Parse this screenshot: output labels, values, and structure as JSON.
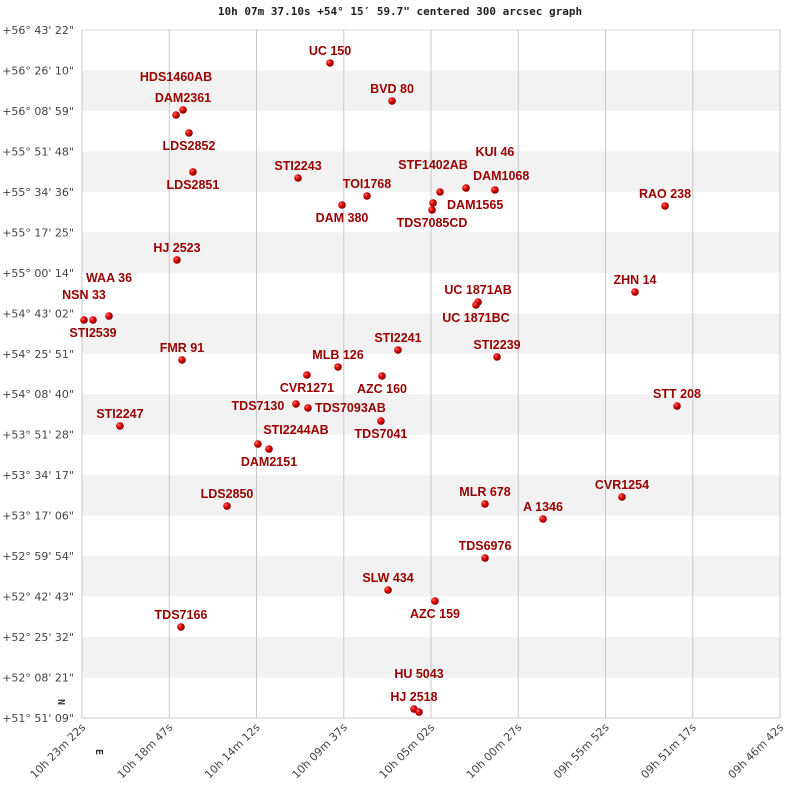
{
  "chart_data": {
    "type": "scatter",
    "title": "10h 07m 37.10s +54° 15′ 59.7\" centered 300 arcsec graph",
    "xlabel": "",
    "ylabel": "",
    "x_units": "right ascension (hours)",
    "y_units": "declination (degrees)",
    "xlim": [
      10.38944,
      9.77833
    ],
    "ylim": [
      51.8525,
      56.72278
    ],
    "x_reversed": true,
    "grid": true,
    "alternating_row_bands": true,
    "compass": {
      "north": "N",
      "east": "E"
    },
    "x_tick_labels": [
      "10h 23m 22s",
      "10h 18m 47s",
      "10h 14m 12s",
      "10h 09m 37s",
      "10h 05m 02s",
      "10h 00m 27s",
      "09h 55m 52s",
      "09h 51m 17s",
      "09h 46m 42s"
    ],
    "y_tick_labels": [
      "+56° 43' 22\"",
      "+56° 26' 10\"",
      "+56° 08' 59\"",
      "+55° 51' 48\"",
      "+55° 34' 36\"",
      "+55° 17' 25\"",
      "+55° 00' 14\"",
      "+54° 43' 02\"",
      "+54° 25' 51\"",
      "+54° 08' 40\"",
      "+53° 51' 28\"",
      "+53° 34' 17\"",
      "+53° 17' 06\"",
      "+52° 59' 54\"",
      "+52° 42' 43\"",
      "+52° 25' 32\"",
      "+52° 08' 21\"",
      "+51° 51' 09\""
    ],
    "colors": {
      "point": "#cc0000",
      "label": "#990000",
      "band": "#f2f2f2",
      "grid": "#c8c8c8"
    },
    "points": [
      {
        "name": "UC  150",
        "ra": 10.1723,
        "dec": 56.4892
      },
      {
        "name": "BVD  80",
        "ra": 10.118,
        "dec": 56.2202
      },
      {
        "name": "DAM2361",
        "ra": 10.301,
        "dec": 56.1565
      },
      {
        "name": "HDS1460AB",
        "ra": 10.3071,
        "dec": 56.1211
      },
      {
        "name": "LDS2852",
        "ra": 10.2958,
        "dec": 55.9937
      },
      {
        "name": "LDS2851",
        "ra": 10.2923,
        "dec": 55.7176
      },
      {
        "name": "STI2243",
        "ra": 10.2003,
        "dec": 55.6751
      },
      {
        "name": "DAM 380",
        "ra": 10.1618,
        "dec": 55.484
      },
      {
        "name": "TOI1768",
        "ra": 10.1399,
        "dec": 55.5477
      },
      {
        "name": "STF1402AB",
        "ra": 10.0821,
        "dec": 55.4982
      },
      {
        "name": "TDS7085CD",
        "ra": 10.083,
        "dec": 55.4486
      },
      {
        "name": "DAM1565",
        "ra": 10.076,
        "dec": 55.576
      },
      {
        "name": "DAM1068",
        "ra": 10.0532,
        "dec": 55.6043
      },
      {
        "name": "KUI  46",
        "ra": 10.0279,
        "dec": 55.5902
      },
      {
        "name": "RAO 238",
        "ra": 9.879,
        "dec": 55.4769
      },
      {
        "name": "HJ 2523",
        "ra": 10.3063,
        "dec": 55.0947
      },
      {
        "name": "ZHN  14",
        "ra": 9.9053,
        "dec": 54.8681
      },
      {
        "name": "UC 1871AB",
        "ra": 10.0427,
        "dec": 54.7973
      },
      {
        "name": "UC 1871BC",
        "ra": 10.0445,
        "dec": 54.7761
      },
      {
        "name": "NSN  33",
        "ra": 10.3877,
        "dec": 54.6699
      },
      {
        "name": "STI2539",
        "ra": 10.3798,
        "dec": 54.6699
      },
      {
        "name": "WAA  36",
        "ra": 10.3658,
        "dec": 54.6982
      },
      {
        "name": "FMR  91",
        "ra": 10.3019,
        "dec": 54.3868
      },
      {
        "name": "STI2241",
        "ra": 10.1128,
        "dec": 54.4576
      },
      {
        "name": "STI2239",
        "ra": 10.0261,
        "dec": 54.408
      },
      {
        "name": "MLB 126",
        "ra": 10.1653,
        "dec": 54.3372
      },
      {
        "name": "CVR1271",
        "ra": 10.1925,
        "dec": 54.2806
      },
      {
        "name": "AZC 160",
        "ra": 10.1268,
        "dec": 54.2735
      },
      {
        "name": "STI2244AB",
        "ra": 10.2021,
        "dec": 54.0753
      },
      {
        "name": "TDS7093AB",
        "ra": 10.1916,
        "dec": 54.047
      },
      {
        "name": "TDS7041",
        "ra": 10.1277,
        "dec": 53.9549
      },
      {
        "name": "STT 208",
        "ra": 9.8685,
        "dec": 54.0611
      },
      {
        "name": "STI2247",
        "ra": 10.3562,
        "dec": 53.9196
      },
      {
        "name": "TDS7130",
        "ra": 10.2354,
        "dec": 53.7921
      },
      {
        "name": "DAM2151",
        "ra": 10.2257,
        "dec": 53.7567
      },
      {
        "name": "LDS2850",
        "ra": 10.2625,
        "dec": 53.3532
      },
      {
        "name": "MLR 678",
        "ra": 10.0366,
        "dec": 53.3674
      },
      {
        "name": "A  1346",
        "ra": 9.9858,
        "dec": 53.2612
      },
      {
        "name": "CVR1254",
        "ra": 9.9167,
        "dec": 53.417
      },
      {
        "name": "TDS6976",
        "ra": 10.0366,
        "dec": 52.9851
      },
      {
        "name": "SLW 434",
        "ra": 10.1215,
        "dec": 52.7586
      },
      {
        "name": "AZC 159",
        "ra": 10.0804,
        "dec": 52.6807
      },
      {
        "name": "TDS7166",
        "ra": 10.3028,
        "dec": 52.4967
      },
      {
        "name": "HJ 2518",
        "ra": 10.0988,
        "dec": 51.9162
      },
      {
        "name": "HU 5043",
        "ra": 10.0944,
        "dec": 51.8949
      }
    ]
  }
}
